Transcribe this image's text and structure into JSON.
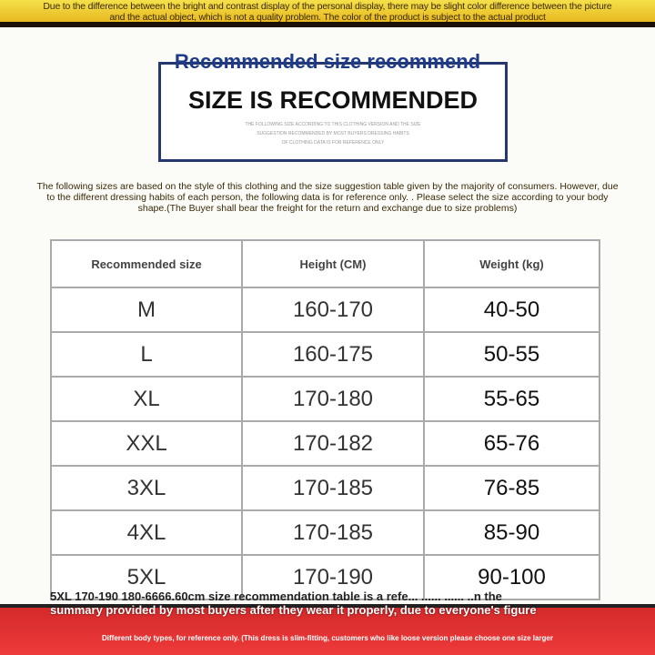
{
  "header": {
    "disclaimer": "Due to the difference between the bright and contrast display of the personal display, there may be slight color difference between the picture and the actual object, which is not a quality problem. The color of the product is subject to the actual product"
  },
  "title": "Recommended size recommend",
  "box": {
    "heading": "SIZE IS RECOMMENDED",
    "lines": [
      "THE FOLLOWING SIZE ACCORDING TO THIS CLOTHING VERSION AND THE SIZE",
      "SUGGESTION RECOMMENDED BY MOST BUYERS DRESSING HABITS",
      "OF CLOTHING DATA IS FOR REFERENCE ONLY"
    ]
  },
  "note": "The following sizes are based on the style of this clothing and the size suggestion table given by the majority of consumers. However, due to the different dressing habits of each person, the following data is for reference only. . Please select the size according to your body shape.(The Buyer shall bear the freight for the return and exchange due to size problems)",
  "table": {
    "headers": [
      "Recommended size",
      "Height (CM)",
      "Weight (kg)"
    ],
    "rows": [
      [
        "M",
        "160-170",
        "40-50"
      ],
      [
        "L",
        "160-175",
        "50-55"
      ],
      [
        "XL",
        "170-180",
        "55-65"
      ],
      [
        "XXL",
        "170-182",
        "65-76"
      ],
      [
        "3XL",
        "170-185",
        "76-85"
      ],
      [
        "4XL",
        "170-185",
        "85-90"
      ],
      [
        "5XL",
        "170-190",
        "90-100"
      ]
    ]
  },
  "overlay": {
    "line1": "5XL 170-190 180-6666.60cm size recommendation table is a refe... ...... ...... ..n the",
    "line2": "summary provided by most buyers after they wear it properly, due to everyone's figure"
  },
  "footer": "Different body types, for reference only. (This dress is slim-fitting, customers who like loose version please choose one size larger"
}
